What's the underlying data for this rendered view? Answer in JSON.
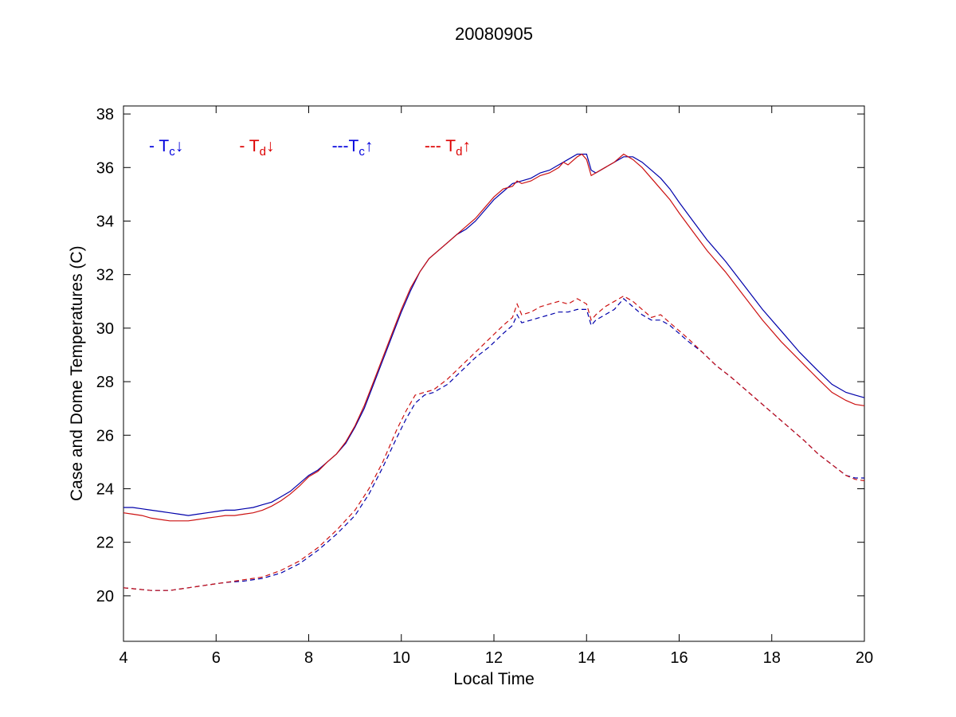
{
  "chart_data": {
    "type": "line",
    "title": "20080905",
    "xlabel": "Local Time",
    "ylabel": "Case and Dome Temperatures (C)",
    "xlim": [
      4,
      20
    ],
    "ylim": [
      18.3,
      38.3
    ],
    "xticks": [
      4,
      6,
      8,
      10,
      12,
      14,
      16,
      18,
      20
    ],
    "yticks": [
      20,
      22,
      24,
      26,
      28,
      30,
      32,
      34,
      36,
      38
    ],
    "grid": false,
    "legend_position": "inside-top-left",
    "legend": [
      {
        "prefix": "- ",
        "name": "T",
        "sub": "c",
        "arrow": "↓",
        "color": "#0000dd",
        "x": 4.55,
        "y": 36.6
      },
      {
        "prefix": "- ",
        "name": "T",
        "sub": "d",
        "arrow": "↓",
        "color": "#dd0000",
        "x": 6.5,
        "y": 36.6
      },
      {
        "prefix": "---",
        "name": "T",
        "sub": "c",
        "arrow": "↑",
        "color": "#0000dd",
        "x": 8.5,
        "y": 36.6
      },
      {
        "prefix": "--- ",
        "name": "T",
        "sub": "d",
        "arrow": "↑",
        "color": "#dd0000",
        "x": 10.5,
        "y": 36.6
      }
    ],
    "series": [
      {
        "name": "Tc-down",
        "label": "T_c down",
        "style": "solid",
        "color": "#0000aa",
        "points": [
          [
            4.0,
            23.3
          ],
          [
            4.2,
            23.3
          ],
          [
            4.4,
            23.25
          ],
          [
            4.6,
            23.2
          ],
          [
            4.8,
            23.15
          ],
          [
            5.0,
            23.1
          ],
          [
            5.2,
            23.05
          ],
          [
            5.4,
            23.0
          ],
          [
            5.6,
            23.05
          ],
          [
            5.8,
            23.1
          ],
          [
            6.0,
            23.15
          ],
          [
            6.2,
            23.2
          ],
          [
            6.4,
            23.2
          ],
          [
            6.6,
            23.25
          ],
          [
            6.8,
            23.3
          ],
          [
            7.0,
            23.4
          ],
          [
            7.2,
            23.5
          ],
          [
            7.4,
            23.7
          ],
          [
            7.6,
            23.9
          ],
          [
            7.8,
            24.2
          ],
          [
            8.0,
            24.5
          ],
          [
            8.2,
            24.7
          ],
          [
            8.4,
            25.0
          ],
          [
            8.6,
            25.3
          ],
          [
            8.8,
            25.7
          ],
          [
            9.0,
            26.3
          ],
          [
            9.2,
            27.0
          ],
          [
            9.4,
            27.9
          ],
          [
            9.6,
            28.8
          ],
          [
            9.8,
            29.7
          ],
          [
            10.0,
            30.6
          ],
          [
            10.2,
            31.4
          ],
          [
            10.4,
            32.1
          ],
          [
            10.6,
            32.6
          ],
          [
            10.8,
            32.9
          ],
          [
            11.0,
            33.2
          ],
          [
            11.2,
            33.5
          ],
          [
            11.4,
            33.7
          ],
          [
            11.6,
            34.0
          ],
          [
            11.8,
            34.4
          ],
          [
            12.0,
            34.8
          ],
          [
            12.2,
            35.1
          ],
          [
            12.4,
            35.4
          ],
          [
            12.6,
            35.5
          ],
          [
            12.8,
            35.6
          ],
          [
            13.0,
            35.8
          ],
          [
            13.2,
            35.9
          ],
          [
            13.4,
            36.1
          ],
          [
            13.6,
            36.3
          ],
          [
            13.8,
            36.5
          ],
          [
            14.0,
            36.5
          ],
          [
            14.1,
            35.9
          ],
          [
            14.2,
            35.8
          ],
          [
            14.4,
            36.0
          ],
          [
            14.6,
            36.2
          ],
          [
            14.8,
            36.4
          ],
          [
            15.0,
            36.4
          ],
          [
            15.2,
            36.2
          ],
          [
            15.4,
            35.9
          ],
          [
            15.6,
            35.6
          ],
          [
            15.8,
            35.2
          ],
          [
            16.0,
            34.7
          ],
          [
            16.3,
            34.0
          ],
          [
            16.6,
            33.3
          ],
          [
            17.0,
            32.5
          ],
          [
            17.4,
            31.6
          ],
          [
            17.8,
            30.7
          ],
          [
            18.2,
            29.9
          ],
          [
            18.6,
            29.1
          ],
          [
            19.0,
            28.4
          ],
          [
            19.3,
            27.9
          ],
          [
            19.6,
            27.6
          ],
          [
            19.8,
            27.5
          ],
          [
            20.0,
            27.4
          ]
        ]
      },
      {
        "name": "Td-down",
        "label": "T_d down",
        "style": "solid",
        "color": "#cc1111",
        "points": [
          [
            4.0,
            23.1
          ],
          [
            4.2,
            23.05
          ],
          [
            4.4,
            23.0
          ],
          [
            4.6,
            22.9
          ],
          [
            4.8,
            22.85
          ],
          [
            5.0,
            22.8
          ],
          [
            5.2,
            22.8
          ],
          [
            5.4,
            22.8
          ],
          [
            5.6,
            22.85
          ],
          [
            5.8,
            22.9
          ],
          [
            6.0,
            22.95
          ],
          [
            6.2,
            23.0
          ],
          [
            6.4,
            23.0
          ],
          [
            6.6,
            23.05
          ],
          [
            6.8,
            23.1
          ],
          [
            7.0,
            23.2
          ],
          [
            7.2,
            23.35
          ],
          [
            7.4,
            23.55
          ],
          [
            7.6,
            23.8
          ],
          [
            7.8,
            24.1
          ],
          [
            8.0,
            24.45
          ],
          [
            8.2,
            24.65
          ],
          [
            8.4,
            25.0
          ],
          [
            8.6,
            25.3
          ],
          [
            8.8,
            25.75
          ],
          [
            9.0,
            26.35
          ],
          [
            9.2,
            27.1
          ],
          [
            9.4,
            28.0
          ],
          [
            9.6,
            28.9
          ],
          [
            9.8,
            29.8
          ],
          [
            10.0,
            30.7
          ],
          [
            10.2,
            31.5
          ],
          [
            10.4,
            32.1
          ],
          [
            10.6,
            32.6
          ],
          [
            10.8,
            32.9
          ],
          [
            11.0,
            33.2
          ],
          [
            11.2,
            33.5
          ],
          [
            11.4,
            33.8
          ],
          [
            11.6,
            34.1
          ],
          [
            11.8,
            34.5
          ],
          [
            12.0,
            34.9
          ],
          [
            12.2,
            35.2
          ],
          [
            12.4,
            35.3
          ],
          [
            12.5,
            35.5
          ],
          [
            12.6,
            35.4
          ],
          [
            12.8,
            35.5
          ],
          [
            13.0,
            35.7
          ],
          [
            13.2,
            35.8
          ],
          [
            13.4,
            36.0
          ],
          [
            13.5,
            36.2
          ],
          [
            13.6,
            36.1
          ],
          [
            13.8,
            36.4
          ],
          [
            13.9,
            36.5
          ],
          [
            14.0,
            36.3
          ],
          [
            14.1,
            35.7
          ],
          [
            14.2,
            35.8
          ],
          [
            14.4,
            36.0
          ],
          [
            14.6,
            36.2
          ],
          [
            14.8,
            36.5
          ],
          [
            15.0,
            36.3
          ],
          [
            15.2,
            36.0
          ],
          [
            15.4,
            35.6
          ],
          [
            15.6,
            35.2
          ],
          [
            15.8,
            34.8
          ],
          [
            16.0,
            34.3
          ],
          [
            16.3,
            33.6
          ],
          [
            16.6,
            32.9
          ],
          [
            17.0,
            32.1
          ],
          [
            17.4,
            31.2
          ],
          [
            17.8,
            30.3
          ],
          [
            18.2,
            29.5
          ],
          [
            18.6,
            28.8
          ],
          [
            19.0,
            28.1
          ],
          [
            19.3,
            27.6
          ],
          [
            19.6,
            27.3
          ],
          [
            19.8,
            27.15
          ],
          [
            20.0,
            27.1
          ]
        ]
      },
      {
        "name": "Tc-up",
        "label": "T_c up",
        "style": "dashed",
        "color": "#0000aa",
        "points": [
          [
            4.0,
            20.3
          ],
          [
            4.3,
            20.25
          ],
          [
            4.6,
            20.2
          ],
          [
            5.0,
            20.2
          ],
          [
            5.4,
            20.3
          ],
          [
            5.8,
            20.4
          ],
          [
            6.2,
            20.5
          ],
          [
            6.6,
            20.55
          ],
          [
            7.0,
            20.65
          ],
          [
            7.4,
            20.85
          ],
          [
            7.8,
            21.2
          ],
          [
            8.2,
            21.7
          ],
          [
            8.6,
            22.3
          ],
          [
            9.0,
            23.0
          ],
          [
            9.3,
            23.8
          ],
          [
            9.6,
            24.8
          ],
          [
            9.9,
            25.9
          ],
          [
            10.1,
            26.6
          ],
          [
            10.3,
            27.2
          ],
          [
            10.5,
            27.5
          ],
          [
            10.7,
            27.6
          ],
          [
            11.0,
            27.9
          ],
          [
            11.3,
            28.4
          ],
          [
            11.6,
            28.9
          ],
          [
            11.9,
            29.3
          ],
          [
            12.2,
            29.8
          ],
          [
            12.4,
            30.1
          ],
          [
            12.5,
            30.5
          ],
          [
            12.6,
            30.2
          ],
          [
            12.8,
            30.3
          ],
          [
            13.0,
            30.4
          ],
          [
            13.2,
            30.5
          ],
          [
            13.4,
            30.6
          ],
          [
            13.6,
            30.6
          ],
          [
            13.8,
            30.7
          ],
          [
            14.0,
            30.7
          ],
          [
            14.1,
            30.1
          ],
          [
            14.2,
            30.3
          ],
          [
            14.4,
            30.5
          ],
          [
            14.6,
            30.7
          ],
          [
            14.8,
            31.1
          ],
          [
            15.0,
            30.8
          ],
          [
            15.2,
            30.5
          ],
          [
            15.4,
            30.3
          ],
          [
            15.6,
            30.3
          ],
          [
            15.8,
            30.1
          ],
          [
            16.0,
            29.8
          ],
          [
            16.2,
            29.5
          ],
          [
            16.5,
            29.1
          ],
          [
            16.8,
            28.6
          ],
          [
            17.1,
            28.2
          ],
          [
            17.5,
            27.6
          ],
          [
            17.9,
            27.0
          ],
          [
            18.3,
            26.4
          ],
          [
            18.7,
            25.8
          ],
          [
            19.0,
            25.3
          ],
          [
            19.3,
            24.9
          ],
          [
            19.6,
            24.5
          ],
          [
            19.8,
            24.4
          ],
          [
            20.0,
            24.4
          ]
        ]
      },
      {
        "name": "Td-up",
        "label": "T_d up",
        "style": "dashed",
        "color": "#cc1111",
        "points": [
          [
            4.0,
            20.3
          ],
          [
            4.3,
            20.25
          ],
          [
            4.6,
            20.2
          ],
          [
            5.0,
            20.2
          ],
          [
            5.4,
            20.3
          ],
          [
            5.8,
            20.4
          ],
          [
            6.2,
            20.5
          ],
          [
            6.6,
            20.6
          ],
          [
            7.0,
            20.7
          ],
          [
            7.4,
            20.95
          ],
          [
            7.8,
            21.3
          ],
          [
            8.2,
            21.8
          ],
          [
            8.6,
            22.45
          ],
          [
            9.0,
            23.2
          ],
          [
            9.3,
            24.0
          ],
          [
            9.6,
            25.0
          ],
          [
            9.9,
            26.2
          ],
          [
            10.1,
            26.9
          ],
          [
            10.3,
            27.5
          ],
          [
            10.5,
            27.6
          ],
          [
            10.7,
            27.7
          ],
          [
            11.0,
            28.1
          ],
          [
            11.3,
            28.6
          ],
          [
            11.6,
            29.1
          ],
          [
            11.9,
            29.6
          ],
          [
            12.2,
            30.1
          ],
          [
            12.4,
            30.4
          ],
          [
            12.5,
            30.9
          ],
          [
            12.6,
            30.5
          ],
          [
            12.8,
            30.6
          ],
          [
            13.0,
            30.8
          ],
          [
            13.2,
            30.9
          ],
          [
            13.4,
            31.0
          ],
          [
            13.6,
            30.9
          ],
          [
            13.8,
            31.1
          ],
          [
            14.0,
            30.9
          ],
          [
            14.1,
            30.3
          ],
          [
            14.2,
            30.5
          ],
          [
            14.4,
            30.8
          ],
          [
            14.6,
            31.0
          ],
          [
            14.8,
            31.2
          ],
          [
            15.0,
            31.0
          ],
          [
            15.2,
            30.7
          ],
          [
            15.4,
            30.4
          ],
          [
            15.6,
            30.5
          ],
          [
            15.8,
            30.2
          ],
          [
            16.0,
            29.9
          ],
          [
            16.2,
            29.6
          ],
          [
            16.5,
            29.1
          ],
          [
            16.8,
            28.6
          ],
          [
            17.1,
            28.2
          ],
          [
            17.5,
            27.6
          ],
          [
            17.9,
            27.0
          ],
          [
            18.3,
            26.4
          ],
          [
            18.7,
            25.8
          ],
          [
            19.0,
            25.3
          ],
          [
            19.3,
            24.9
          ],
          [
            19.6,
            24.5
          ],
          [
            19.8,
            24.35
          ],
          [
            20.0,
            24.3
          ]
        ]
      }
    ]
  }
}
